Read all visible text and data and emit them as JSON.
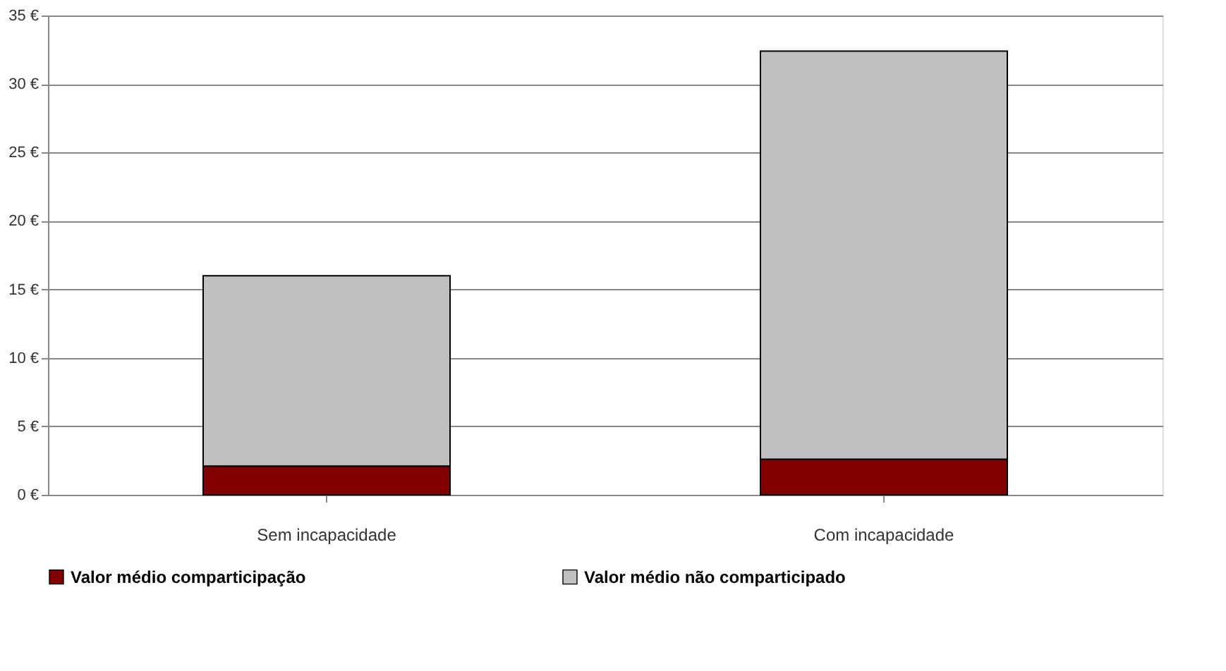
{
  "chart_data": {
    "type": "bar",
    "stacked": true,
    "categories": [
      "Sem incapacidade",
      "Com incapacidade"
    ],
    "series": [
      {
        "name": "Valor médio comparticipação",
        "color": "#800000",
        "values": [
          2.1,
          2.6
        ]
      },
      {
        "name": "Valor médio não comparticipado",
        "color": "#c0c0c0",
        "values": [
          13.9,
          29.8
        ]
      }
    ],
    "ylim": [
      0,
      35
    ],
    "yticks": [
      {
        "value": 0,
        "label": "0 €"
      },
      {
        "value": 5,
        "label": "5 €"
      },
      {
        "value": 10,
        "label": "10 €"
      },
      {
        "value": 15,
        "label": "15 €"
      },
      {
        "value": 20,
        "label": "20 €"
      },
      {
        "value": 25,
        "label": "25 €"
      },
      {
        "value": 30,
        "label": "30 €"
      },
      {
        "value": 35,
        "label": "35 €"
      }
    ],
    "grid": "y",
    "legend": "bottom"
  }
}
